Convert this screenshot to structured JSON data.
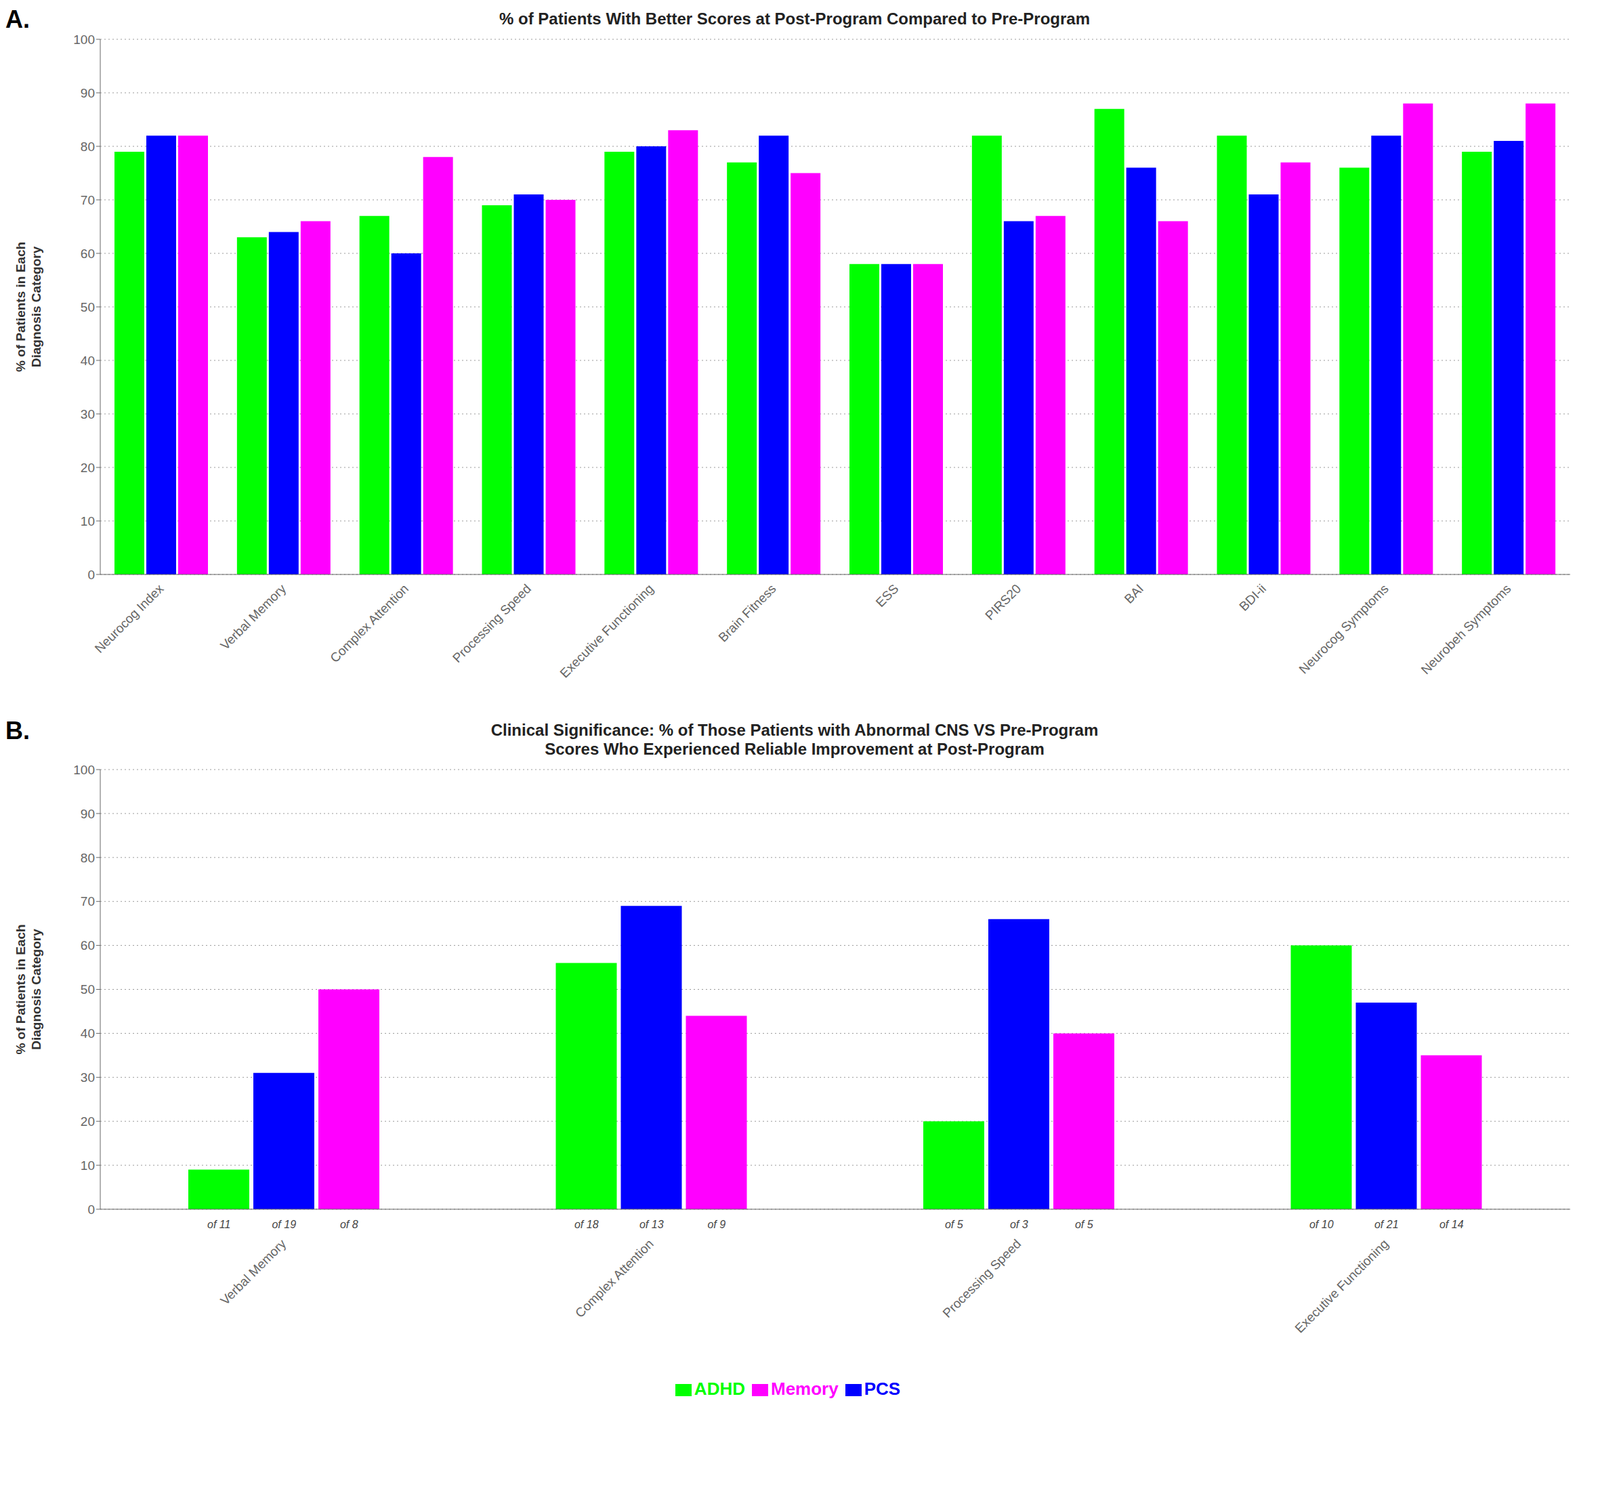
{
  "chart_data": [
    {
      "type": "bar",
      "panel_label": "A.",
      "title": "% of Patients With Better Scores at Post-Program Compared to Pre-Program",
      "ylabel": "% of Patients in Each\nDiagnosis Category",
      "categories": [
        "Neurocog Index",
        "Verbal Memory",
        "Complex Attention",
        "Processing Speed",
        "Executive Functioning",
        "Brain Fitness",
        "ESS",
        "PIRS20",
        "BAI",
        "BDI-ii",
        "Neurocog Symptoms",
        "Neurobeh Symptoms"
      ],
      "series": [
        {
          "name": "ADHD",
          "color": "#00FF00",
          "values": [
            79,
            63,
            67,
            69,
            79,
            77,
            58,
            82,
            87,
            82,
            76,
            79
          ]
        },
        {
          "name": "PCS",
          "color": "#0000FF",
          "values": [
            82,
            64,
            60,
            71,
            80,
            82,
            58,
            66,
            76,
            71,
            82,
            81
          ]
        },
        {
          "name": "Memory",
          "color": "#FF00FF",
          "values": [
            82,
            66,
            78,
            70,
            83,
            75,
            58,
            67,
            66,
            77,
            88,
            88
          ]
        }
      ],
      "ylim": [
        0,
        100
      ],
      "yticks": [
        0,
        10,
        20,
        30,
        40,
        50,
        60,
        70,
        80,
        90,
        100
      ],
      "grid": true
    },
    {
      "type": "bar",
      "panel_label": "B.",
      "title": "Clinical Significance: % of Those Patients with Abnormal CNS VS Pre-Program\nScores Who Experienced Reliable Improvement at Post-Program",
      "ylabel": "% of Patients in Each\nDiagnosis Category",
      "categories": [
        "Verbal Memory",
        "Complex Attention",
        "Processing Speed",
        "Executive Functioning"
      ],
      "series": [
        {
          "name": "ADHD",
          "color": "#00FF00",
          "values": [
            9,
            56,
            20,
            60
          ],
          "n_labels": [
            "of 11",
            "of 18",
            "of 5",
            "of 10"
          ]
        },
        {
          "name": "PCS",
          "color": "#0000FF",
          "values": [
            31,
            69,
            66,
            47
          ],
          "n_labels": [
            "of 19",
            "of 13",
            "of 3",
            "of 21"
          ]
        },
        {
          "name": "Memory",
          "color": "#FF00FF",
          "values": [
            50,
            44,
            40,
            35
          ],
          "n_labels": [
            "of 8",
            "of 9",
            "of 5",
            "of 14"
          ]
        }
      ],
      "ylim": [
        0,
        100
      ],
      "yticks": [
        0,
        10,
        20,
        30,
        40,
        50,
        60,
        70,
        80,
        90,
        100
      ],
      "grid": true,
      "legend": "bottom"
    }
  ]
}
